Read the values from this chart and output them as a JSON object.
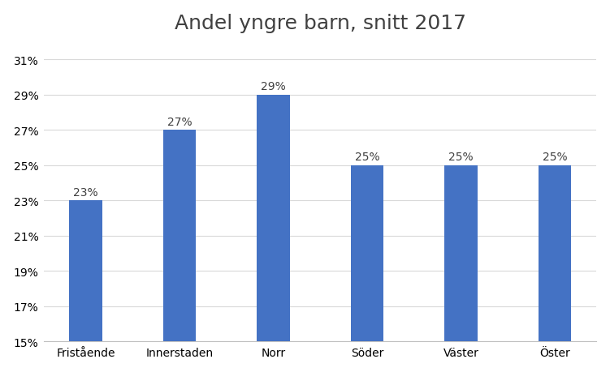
{
  "title": "Andel yngre barn, snitt 2017",
  "categories": [
    "Fristående",
    "Innerstaden",
    "Norr",
    "Söder",
    "Väster",
    "Öster"
  ],
  "values": [
    0.23,
    0.27,
    0.29,
    0.25,
    0.25,
    0.25
  ],
  "labels": [
    "23%",
    "27%",
    "29%",
    "25%",
    "25%",
    "25%"
  ],
  "bar_color": "#4472C4",
  "ylim_min": 0.15,
  "ylim_max": 0.32,
  "yticks": [
    0.15,
    0.17,
    0.19,
    0.21,
    0.23,
    0.25,
    0.27,
    0.29,
    0.31
  ],
  "background_color": "#ffffff",
  "grid_color": "#d9d9d9",
  "title_fontsize": 18,
  "label_fontsize": 10,
  "tick_fontsize": 10,
  "bar_width": 0.35
}
